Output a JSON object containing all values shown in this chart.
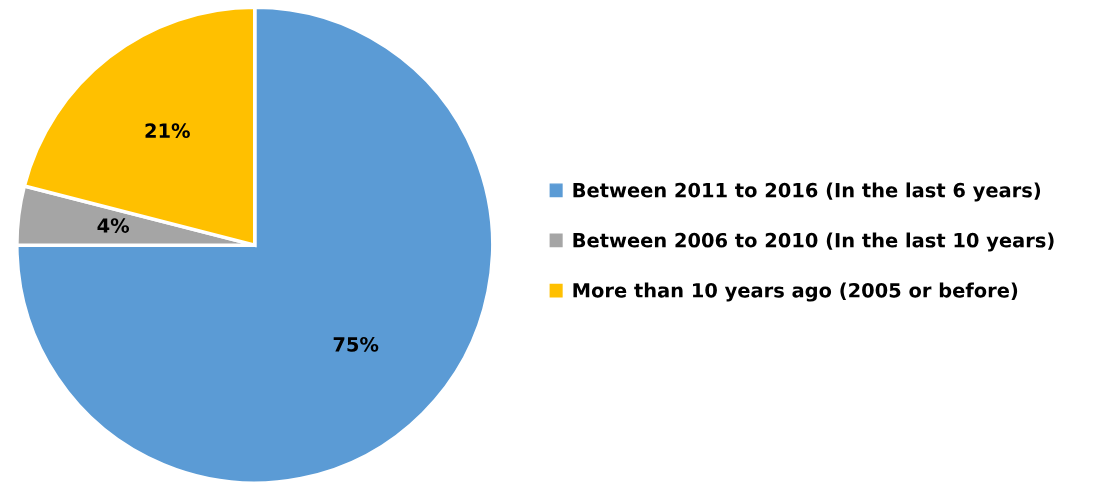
{
  "chart_data": {
    "type": "pie",
    "categories": [
      "Between 2011 to 2016 (In the last 6 years)",
      "Between 2006 to 2010 (In the last 10 years)",
      "More than 10 years ago (2005 or before)"
    ],
    "values": [
      75,
      4,
      21
    ],
    "colors": [
      "#5b9bd5",
      "#a5a5a5",
      "#ffc000"
    ],
    "value_labels": [
      "75%",
      "4%",
      "21%"
    ],
    "legend": "right"
  }
}
